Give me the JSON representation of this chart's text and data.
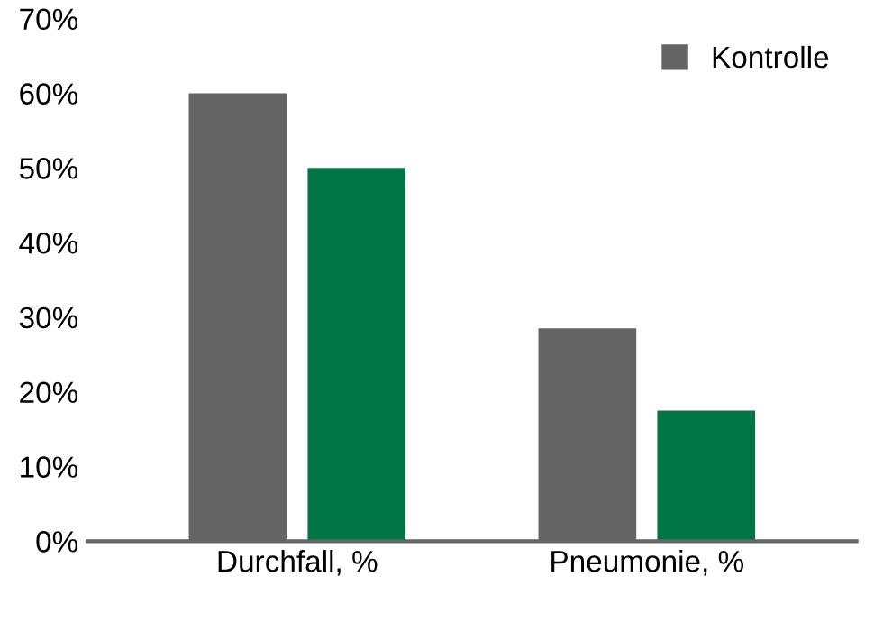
{
  "chart_data": {
    "type": "bar",
    "categories": [
      "Durchfall, %",
      "Pneumonie, %"
    ],
    "series": [
      {
        "name": "Kontrolle",
        "color": "#646464",
        "values": [
          60,
          28.5
        ]
      },
      {
        "color": "#007545",
        "values": [
          50,
          17.5
        ]
      }
    ],
    "ylim": [
      0,
      70
    ],
    "yticks": [
      {
        "value": 0,
        "label": "0%"
      },
      {
        "value": 10,
        "label": "10%"
      },
      {
        "value": 20,
        "label": "20%"
      },
      {
        "value": 30,
        "label": "30%"
      },
      {
        "value": 40,
        "label": "40%"
      },
      {
        "value": 50,
        "label": "50%"
      },
      {
        "value": 60,
        "label": "60%"
      },
      {
        "value": 70,
        "label": "70%"
      }
    ],
    "grid": false,
    "legend": "top right"
  }
}
